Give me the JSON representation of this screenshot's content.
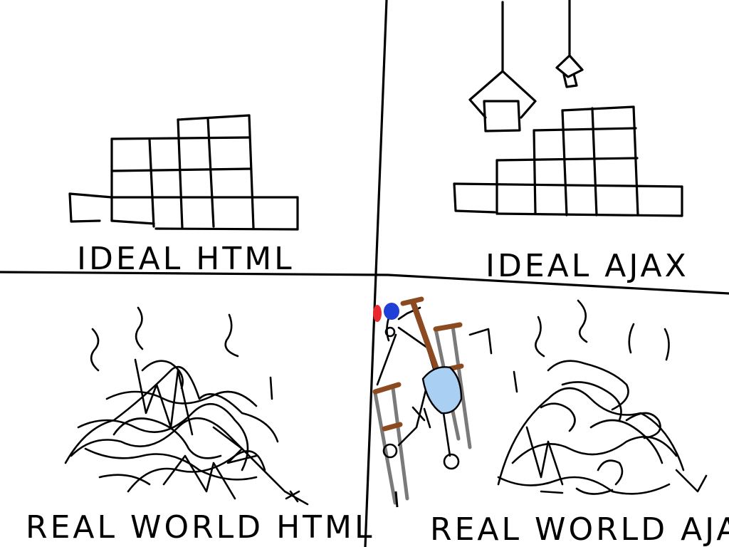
{
  "panels": [
    {
      "caption": "IDEAL HTML"
    },
    {
      "caption": "IDEAL AJAX"
    },
    {
      "caption": "REAL WORLD HTML"
    },
    {
      "caption": "REAL WORLD AJAX"
    }
  ],
  "colors": {
    "ink": "#000000",
    "shovel_blade": "#a9cff2",
    "handle": "#8b4a1f",
    "crutch": "#7a7a7a",
    "hat_red": "#e8282c",
    "hat_blue": "#1f3fd6"
  }
}
